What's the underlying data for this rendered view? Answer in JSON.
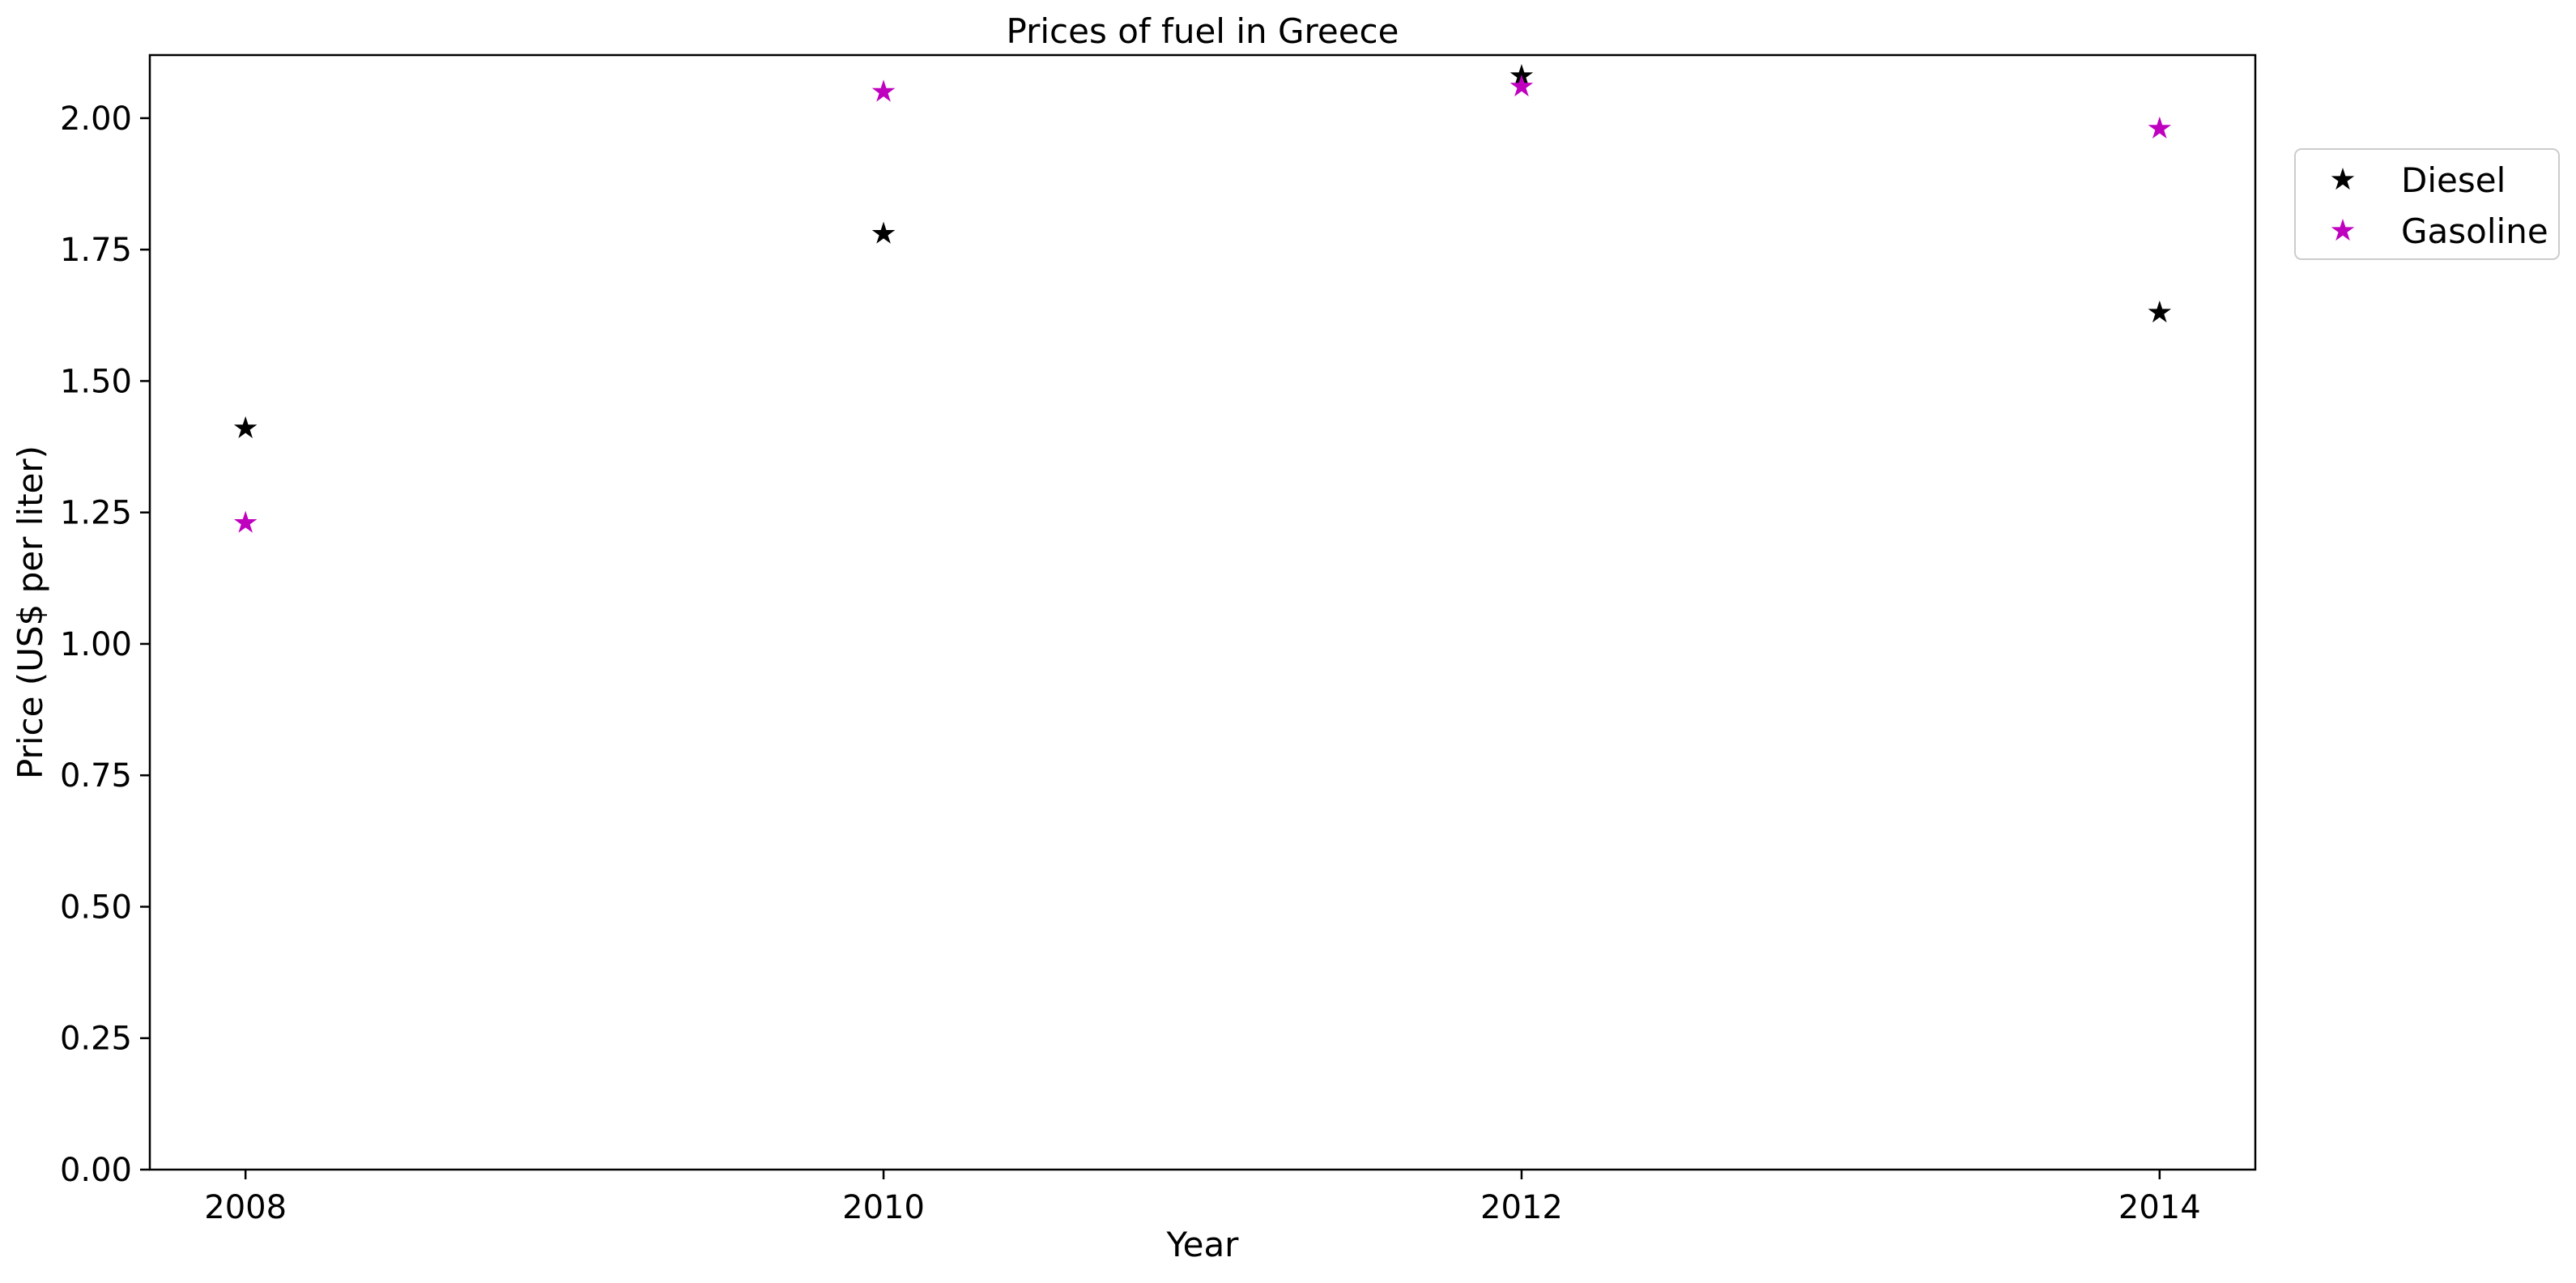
{
  "chart_data": {
    "type": "scatter",
    "title": "Prices of fuel in Greece",
    "xlabel": "Year",
    "ylabel": "Price (US$ per liter)",
    "x": [
      2008,
      2010,
      2012,
      2014
    ],
    "xticks": [
      "2008",
      "2010",
      "2012",
      "2014"
    ],
    "xlim": [
      2007.7,
      2014.3
    ],
    "ylim": [
      0,
      2.12
    ],
    "yticks": [
      "0.00",
      "0.25",
      "0.50",
      "0.75",
      "1.00",
      "1.25",
      "1.50",
      "1.75",
      "2.00"
    ],
    "grid": false,
    "legend_position": "outside-right-top",
    "marker": "star",
    "series": [
      {
        "name": "Diesel",
        "color": "#000000",
        "values": [
          1.41,
          1.78,
          2.08,
          1.63
        ]
      },
      {
        "name": "Gasoline",
        "color": "#bf00bf",
        "values": [
          1.23,
          2.05,
          2.06,
          1.98
        ]
      }
    ]
  }
}
